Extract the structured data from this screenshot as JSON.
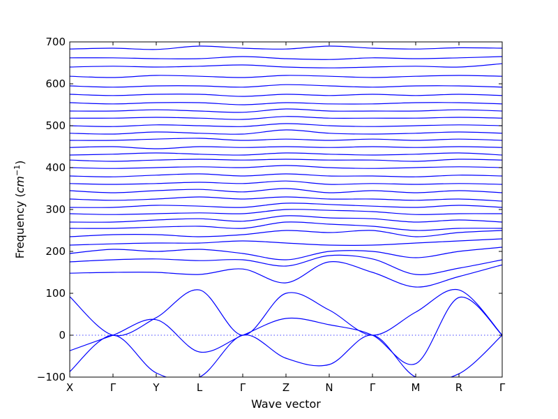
{
  "chart_data": {
    "type": "line",
    "xlabel": "Wave vector",
    "ylabel": "Frequency",
    "ylabel_unit_italic": "cm",
    "ylabel_unit_exp": "−1",
    "ylim": [
      -100,
      700
    ],
    "yticks": [
      -100,
      0,
      100,
      200,
      300,
      400,
      500,
      600,
      700
    ],
    "xticks": [
      "X",
      "Γ",
      "Y",
      "L",
      "Γ",
      "Z",
      "N",
      "Γ",
      "M",
      "R",
      "Γ"
    ],
    "zero_reference_line": 0,
    "line_color": "#0000ff",
    "grid": false,
    "x": [
      0,
      1,
      2,
      3,
      4,
      5,
      6,
      7,
      8,
      9,
      10
    ],
    "series": [
      {
        "values": [
          -87,
          0,
          -90,
          -100,
          0,
          -55,
          -70,
          0,
          -100,
          -92,
          0
        ]
      },
      {
        "values": [
          -37,
          0,
          37,
          -40,
          0,
          40,
          25,
          0,
          -68,
          90,
          0
        ]
      },
      {
        "values": [
          92,
          0,
          42,
          108,
          0,
          100,
          60,
          0,
          55,
          108,
          0
        ]
      },
      {
        "values": [
          148,
          150,
          150,
          145,
          158,
          125,
          175,
          150,
          115,
          140,
          168
        ]
      },
      {
        "values": [
          175,
          180,
          182,
          178,
          180,
          165,
          190,
          182,
          145,
          160,
          180
        ]
      },
      {
        "values": [
          195,
          205,
          200,
          205,
          195,
          180,
          200,
          200,
          185,
          200,
          210
        ]
      },
      {
        "values": [
          215,
          218,
          220,
          220,
          225,
          220,
          215,
          215,
          220,
          225,
          230
        ]
      },
      {
        "values": [
          235,
          240,
          240,
          235,
          240,
          250,
          245,
          250,
          235,
          245,
          250
        ]
      },
      {
        "values": [
          255,
          255,
          258,
          260,
          255,
          270,
          265,
          260,
          250,
          255,
          255
        ]
      },
      {
        "values": [
          270,
          270,
          275,
          278,
          272,
          285,
          280,
          278,
          270,
          275,
          270
        ]
      },
      {
        "values": [
          290,
          288,
          290,
          292,
          290,
          300,
          298,
          295,
          288,
          290,
          290
        ]
      },
      {
        "values": [
          305,
          305,
          310,
          308,
          305,
          315,
          312,
          308,
          305,
          310,
          305
        ]
      },
      {
        "values": [
          325,
          322,
          325,
          330,
          325,
          330,
          325,
          325,
          322,
          325,
          320
        ]
      },
      {
        "values": [
          345,
          340,
          345,
          348,
          342,
          350,
          340,
          345,
          340,
          345,
          340
        ]
      },
      {
        "values": [
          362,
          360,
          362,
          365,
          362,
          368,
          360,
          362,
          360,
          362,
          360
        ]
      },
      {
        "values": [
          380,
          378,
          382,
          385,
          380,
          385,
          380,
          380,
          378,
          382,
          380
        ]
      },
      {
        "values": [
          400,
          398,
          400,
          402,
          400,
          405,
          400,
          398,
          400,
          402,
          400
        ]
      },
      {
        "values": [
          418,
          415,
          418,
          420,
          418,
          420,
          418,
          418,
          415,
          420,
          418
        ]
      },
      {
        "values": [
          430,
          432,
          435,
          432,
          430,
          435,
          432,
          430,
          432,
          435,
          430
        ]
      },
      {
        "values": [
          448,
          450,
          445,
          450,
          448,
          450,
          448,
          450,
          448,
          450,
          448
        ]
      },
      {
        "values": [
          465,
          465,
          468,
          470,
          465,
          468,
          465,
          468,
          465,
          468,
          465
        ]
      },
      {
        "values": [
          482,
          480,
          485,
          482,
          480,
          490,
          482,
          480,
          482,
          485,
          482
        ]
      },
      {
        "values": [
          500,
          498,
          502,
          500,
          498,
          505,
          500,
          498,
          500,
          502,
          500
        ]
      },
      {
        "values": [
          518,
          518,
          520,
          518,
          515,
          522,
          518,
          518,
          518,
          520,
          518
        ]
      },
      {
        "values": [
          535,
          535,
          538,
          535,
          532,
          540,
          535,
          535,
          535,
          538,
          535
        ]
      },
      {
        "values": [
          555,
          552,
          555,
          555,
          550,
          555,
          552,
          552,
          555,
          555,
          552
        ]
      },
      {
        "values": [
          575,
          572,
          575,
          575,
          570,
          575,
          572,
          575,
          572,
          575,
          572
        ]
      },
      {
        "values": [
          595,
          592,
          595,
          595,
          592,
          598,
          595,
          592,
          595,
          595,
          592
        ]
      },
      {
        "values": [
          618,
          615,
          620,
          618,
          615,
          620,
          618,
          615,
          618,
          620,
          618
        ]
      },
      {
        "values": [
          640,
          642,
          640,
          642,
          645,
          640,
          638,
          640,
          642,
          640,
          648
        ]
      },
      {
        "values": [
          662,
          662,
          660,
          660,
          665,
          660,
          658,
          662,
          660,
          662,
          665
        ]
      },
      {
        "values": [
          683,
          685,
          682,
          690,
          685,
          683,
          690,
          685,
          683,
          686,
          685
        ]
      }
    ]
  }
}
